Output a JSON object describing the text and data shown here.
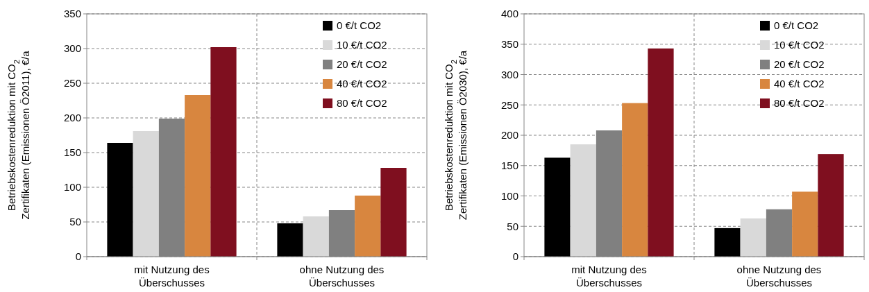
{
  "chart_data": [
    {
      "type": "bar",
      "ylabel": "Betriebskostenreduktion mit CO$_{2}$\nZertifikaten (Emissionen Ö2011), €/a",
      "categories": [
        "mit Nutzung des Überschusses",
        "ohne Nutzung des Überschusses"
      ],
      "series": [
        {
          "name": "0 €/t CO2",
          "color": "#000000",
          "values": [
            164,
            48
          ]
        },
        {
          "name": "10 €/t CO2",
          "color": "#d9d9d9",
          "values": [
            181,
            58
          ]
        },
        {
          "name": "20 €/t CO2",
          "color": "#808080",
          "values": [
            199,
            67
          ]
        },
        {
          "name": "40 €/t CO2",
          "color": "#d8863f",
          "values": [
            233,
            88
          ]
        },
        {
          "name": "80 €/t CO2",
          "color": "#7f0f1f",
          "values": [
            302,
            128
          ]
        }
      ],
      "ylim": [
        0,
        350
      ],
      "yticks": [
        0,
        50,
        100,
        150,
        200,
        250,
        300,
        350
      ],
      "grid": true,
      "legend": "top right"
    },
    {
      "type": "bar",
      "ylabel": "Betriebskostenreduktion mit CO$_{2}$\nZertifikaten (Emissionen Ö2030), €/a",
      "categories": [
        "mit Nutzung des Überschusses",
        "ohne Nutzung des Überschusses"
      ],
      "series": [
        {
          "name": "0 €/t CO2",
          "color": "#000000",
          "values": [
            163,
            47
          ]
        },
        {
          "name": "10 €/t CO2",
          "color": "#d9d9d9",
          "values": [
            185,
            63
          ]
        },
        {
          "name": "20 €/t CO2",
          "color": "#808080",
          "values": [
            208,
            78
          ]
        },
        {
          "name": "40 €/t CO2",
          "color": "#d8863f",
          "values": [
            253,
            107
          ]
        },
        {
          "name": "80 €/t CO2",
          "color": "#7f0f1f",
          "values": [
            343,
            169
          ]
        }
      ],
      "ylim": [
        0,
        400
      ],
      "yticks": [
        0,
        50,
        100,
        150,
        200,
        250,
        300,
        350,
        400
      ],
      "grid": true,
      "legend": "top right"
    }
  ]
}
